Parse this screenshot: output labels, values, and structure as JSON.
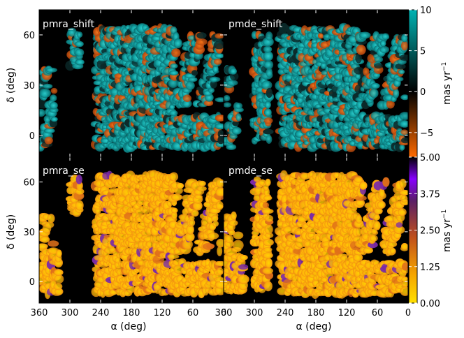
{
  "chart_data": [
    {
      "type": "heatmap",
      "panel_label": "pmra_shift",
      "xlabel": "",
      "ylabel": "δ (deg)",
      "xlim": [
        360,
        0
      ],
      "ylim": [
        -13,
        75
      ],
      "xticks": [
        360,
        300,
        240,
        180,
        120,
        60,
        0
      ],
      "yticks": [
        0,
        30,
        60
      ],
      "colorscale": "diverging",
      "clim": [
        -8,
        10
      ],
      "dominant_value": 6,
      "empty_ra_bands": [
        [
          330,
          300
        ],
        [
          270,
          250
        ]
      ],
      "masked_region": "black background outside survey footprint"
    },
    {
      "type": "heatmap",
      "panel_label": "pmde_shift",
      "xlabel": "",
      "ylabel": "",
      "xlim": [
        360,
        0
      ],
      "ylim": [
        -13,
        75
      ],
      "xticks": [
        360,
        300,
        240,
        180,
        120,
        60,
        0
      ],
      "yticks": [
        0,
        30,
        60
      ],
      "colorscale": "diverging",
      "clim": [
        -8,
        10
      ],
      "dominant_value": 6,
      "empty_ra_bands": [
        [
          345,
          320
        ]
      ],
      "masked_region": "black background outside survey footprint"
    },
    {
      "type": "heatmap",
      "panel_label": "pmra_se",
      "xlabel": "α (deg)",
      "ylabel": "δ (deg)",
      "xlim": [
        360,
        0
      ],
      "ylim": [
        -13,
        75
      ],
      "xticks": [
        360,
        300,
        240,
        180,
        120,
        60,
        0
      ],
      "yticks": [
        0,
        30,
        60
      ],
      "colorscale": "sequential",
      "clim": [
        0,
        5
      ],
      "dominant_value": 0.4,
      "masked_region": "black background outside survey footprint"
    },
    {
      "type": "heatmap",
      "panel_label": "pmde_se",
      "xlabel": "α (deg)",
      "ylabel": "",
      "xlim": [
        360,
        0
      ],
      "ylim": [
        -13,
        75
      ],
      "xticks": [
        360,
        300,
        240,
        180,
        120,
        60,
        0
      ],
      "yticks": [
        0,
        30,
        60
      ],
      "colorscale": "sequential",
      "clim": [
        0,
        5
      ],
      "dominant_value": 0.4,
      "masked_region": "black background outside survey footprint"
    }
  ],
  "axes": {
    "x_tick_labels": [
      "360",
      "300",
      "240",
      "180",
      "120",
      "60",
      "0"
    ],
    "y_tick_labels": [
      "0",
      "30",
      "60"
    ],
    "xlabel": "α (deg)",
    "ylabel": "δ (deg)"
  },
  "colorbars": [
    {
      "name": "shift",
      "label": "mas yr",
      "label_exponent": "−1",
      "range": [
        -8,
        10
      ],
      "ticks": [
        10,
        5,
        0,
        -5
      ],
      "tick_labels": [
        "10",
        "5",
        "0",
        "−5"
      ],
      "colors": [
        "#ff6a00",
        "#000000",
        "#00b3b3"
      ]
    },
    {
      "name": "se",
      "label": "mas yr",
      "label_exponent": "−1",
      "range": [
        0,
        5
      ],
      "ticks": [
        5,
        3.75,
        2.5,
        1.25,
        0
      ],
      "tick_labels": [
        "5.00",
        "3.75",
        "2.50",
        "1.25",
        "0.00"
      ],
      "colors": [
        "#ffe000",
        "#f5a400",
        "#c0501c",
        "#5a1f66",
        "#8800ff",
        "#000000"
      ]
    }
  ]
}
